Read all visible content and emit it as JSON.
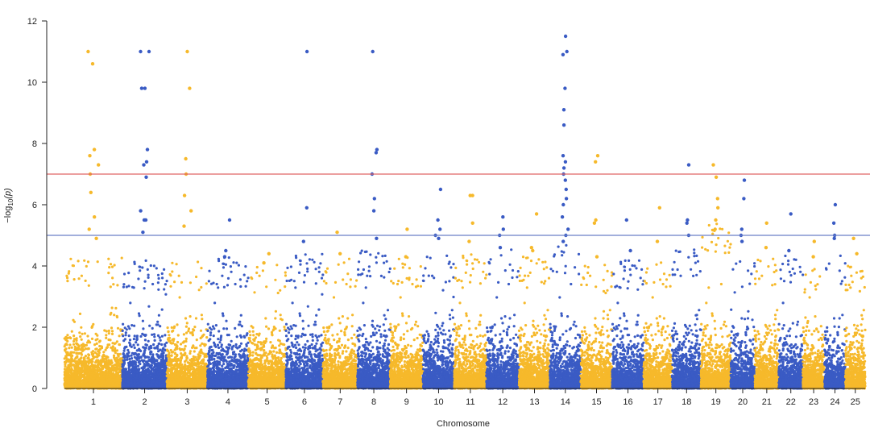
{
  "chart_data": {
    "type": "scatter",
    "subtype": "manhattan",
    "title": "",
    "xlabel": "Chromosome",
    "ylabel_parts": {
      "base": "−log",
      "sub": "10",
      "arg": "(p)"
    },
    "ylim": [
      0,
      12
    ],
    "yticks": [
      0,
      2,
      4,
      6,
      8,
      10,
      12
    ],
    "grid": false,
    "colors": [
      "#f6b92b",
      "#3a5bc4"
    ],
    "threshold_lines": [
      {
        "value": 7,
        "color": "#e06666"
      },
      {
        "value": 5,
        "color": "#6a7fc8"
      }
    ],
    "chromosomes": [
      {
        "label": "1",
        "start": 0,
        "end": 94,
        "base_top": 3.5,
        "top_hits": [
          11.0,
          10.6,
          7.8,
          7.6,
          7.3,
          7.0,
          6.4,
          5.6,
          5.2,
          4.9
        ]
      },
      {
        "label": "2",
        "start": 94,
        "end": 166,
        "base_top": 3.4,
        "top_hits": [
          11.0,
          11.0,
          9.8,
          9.8,
          7.8,
          7.4,
          7.3,
          6.9,
          5.8,
          5.5,
          5.5,
          5.1
        ]
      },
      {
        "label": "3",
        "start": 166,
        "end": 232,
        "base_top": 3.4,
        "top_hits": [
          11.0,
          9.8,
          7.5,
          7.0,
          6.3,
          5.8,
          5.3
        ]
      },
      {
        "label": "4",
        "start": 232,
        "end": 298,
        "base_top": 3.5,
        "top_hits": [
          5.5,
          4.5,
          4.3
        ]
      },
      {
        "label": "5",
        "start": 298,
        "end": 359,
        "base_top": 3.3,
        "top_hits": [
          4.4,
          4.1
        ]
      },
      {
        "label": "6",
        "start": 359,
        "end": 419,
        "base_top": 3.6,
        "top_hits": [
          11.0,
          5.9,
          4.8
        ]
      },
      {
        "label": "7",
        "start": 419,
        "end": 475,
        "base_top": 3.5,
        "top_hits": [
          5.1,
          4.4
        ]
      },
      {
        "label": "8",
        "start": 475,
        "end": 528,
        "base_top": 3.8,
        "top_hits": [
          11.0,
          7.8,
          7.7,
          7.0,
          6.2,
          5.8,
          4.9
        ]
      },
      {
        "label": "9",
        "start": 528,
        "end": 581,
        "base_top": 3.5,
        "top_hits": [
          5.2,
          4.3
        ]
      },
      {
        "label": "10",
        "start": 581,
        "end": 632,
        "base_top": 3.6,
        "top_hits": [
          6.5,
          5.5,
          5.2,
          5.0,
          4.9
        ]
      },
      {
        "label": "11",
        "start": 632,
        "end": 684,
        "base_top": 3.6,
        "top_hits": [
          6.3,
          6.3,
          5.4,
          4.8
        ]
      },
      {
        "label": "12",
        "start": 684,
        "end": 737,
        "base_top": 3.8,
        "top_hits": [
          5.6,
          5.2,
          5.0,
          4.6
        ]
      },
      {
        "label": "13",
        "start": 737,
        "end": 787,
        "base_top": 3.6,
        "top_hits": [
          5.7,
          4.6,
          4.5
        ]
      },
      {
        "label": "14",
        "start": 787,
        "end": 837,
        "base_top": 3.9,
        "top_hits": [
          11.5,
          11.0,
          10.9,
          9.8,
          9.1,
          8.6,
          7.6,
          7.4,
          7.2,
          7.0,
          6.8,
          6.5,
          6.2,
          6.0,
          5.6,
          5.2,
          5.0,
          4.8
        ]
      },
      {
        "label": "15",
        "start": 837,
        "end": 888,
        "base_top": 3.3,
        "top_hits": [
          7.6,
          7.4,
          5.5,
          5.4,
          4.3
        ]
      },
      {
        "label": "16",
        "start": 888,
        "end": 939,
        "base_top": 3.4,
        "top_hits": [
          5.5,
          4.5
        ]
      },
      {
        "label": "17",
        "start": 939,
        "end": 985,
        "base_top": 3.5,
        "top_hits": [
          5.9,
          4.8
        ]
      },
      {
        "label": "18",
        "start": 985,
        "end": 1032,
        "base_top": 3.8,
        "top_hits": [
          7.3,
          5.5,
          5.4,
          5.0
        ]
      },
      {
        "label": "19",
        "start": 1032,
        "end": 1080,
        "base_top": 4.6,
        "top_hits": [
          7.3,
          6.9,
          6.2,
          5.9,
          5.5,
          5.2
        ]
      },
      {
        "label": "20",
        "start": 1080,
        "end": 1119,
        "base_top": 3.6,
        "top_hits": [
          6.8,
          6.2,
          5.2,
          5.0,
          4.8
        ]
      },
      {
        "label": "21",
        "start": 1119,
        "end": 1158,
        "base_top": 3.5,
        "top_hits": [
          5.4,
          4.6
        ]
      },
      {
        "label": "22",
        "start": 1158,
        "end": 1197,
        "base_top": 3.6,
        "top_hits": [
          5.7,
          4.5
        ]
      },
      {
        "label": "23",
        "start": 1197,
        "end": 1232,
        "base_top": 3.3,
        "top_hits": [
          4.8,
          4.3
        ]
      },
      {
        "label": "24",
        "start": 1232,
        "end": 1266,
        "base_top": 3.6,
        "top_hits": [
          6.0,
          5.4,
          5.0,
          4.9
        ]
      },
      {
        "label": "25",
        "start": 1266,
        "end": 1298,
        "base_top": 3.3,
        "top_hits": [
          4.9,
          4.4
        ]
      }
    ]
  }
}
